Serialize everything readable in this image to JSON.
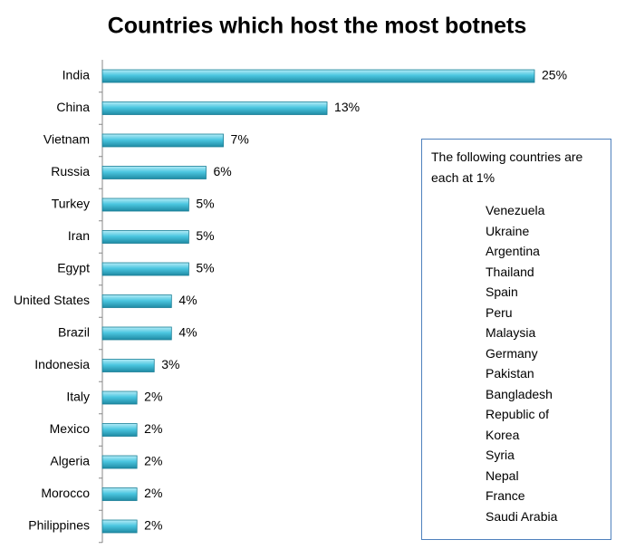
{
  "chart_data": {
    "type": "bar",
    "orientation": "horizontal",
    "title": "Countries which host the most botnets",
    "categories": [
      "India",
      "China",
      "Vietnam",
      "Russia",
      "Turkey",
      "Iran",
      "Egypt",
      "United States",
      "Brazil",
      "Indonesia",
      "Italy",
      "Mexico",
      "Algeria",
      "Morocco",
      "Philippines"
    ],
    "values": [
      25,
      13,
      7,
      6,
      5,
      5,
      5,
      4,
      4,
      3,
      2,
      2,
      2,
      2,
      2
    ],
    "value_labels": [
      "25%",
      "13%",
      "7%",
      "6%",
      "5%",
      "5%",
      "5%",
      "4%",
      "4%",
      "3%",
      "2%",
      "2%",
      "2%",
      "2%",
      "2%"
    ],
    "color": "#4bc6e0",
    "xlim": [
      0,
      25
    ],
    "annotation": {
      "text": "The following countries are each at 1%",
      "items": [
        "Venezuela",
        "Ukraine",
        "Argentina",
        "Thailand",
        "Spain",
        "Peru",
        "Malaysia",
        "Germany",
        "Pakistan",
        "Bangladesh",
        "Republic of Korea",
        "Syria",
        "Nepal",
        "France",
        "Saudi Arabia"
      ]
    }
  }
}
